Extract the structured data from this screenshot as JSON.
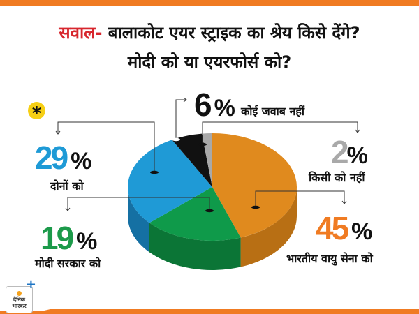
{
  "title": {
    "prefix": "सवाल-",
    "line1": " बालाकोट एयर स्ट्राइक का श्रेय किसे देंगे?",
    "line2": "मोदी को या एयरफोर्स को?"
  },
  "logo": {
    "line1": "दैनिक",
    "line2": "भास्कर"
  },
  "marker": "*",
  "chart_data": {
    "type": "pie",
    "style": "3d",
    "title": "सवाल- बालाकोट एयर स्ट्राइक का श्रेय किसे देंगे? मोदी को या एयरफोर्स को?",
    "unit": "%",
    "slices": [
      {
        "label": "भारतीय वायु सेना को",
        "value": 45,
        "color": "#e08a1e",
        "side_color": "#b86f14",
        "text_color": "#f07b22"
      },
      {
        "label": "मोदी सरकार को",
        "value": 19,
        "color": "#0f9a4a",
        "side_color": "#0b7536",
        "text_color": "#1c9a4a"
      },
      {
        "label": "दोनों को",
        "value": 29,
        "color": "#1f9ad6",
        "side_color": "#1570a3",
        "text_color": "#1e9ad6"
      },
      {
        "label": "कोई जवाब नहीं",
        "value": 6,
        "color": "#111111",
        "side_color": "#000000",
        "text_color": "#111111"
      },
      {
        "label": "किसी को नहीं",
        "value": 2,
        "color": "#a9a9a9",
        "side_color": "#858585",
        "text_color": "#a9a9a9"
      }
    ]
  }
}
